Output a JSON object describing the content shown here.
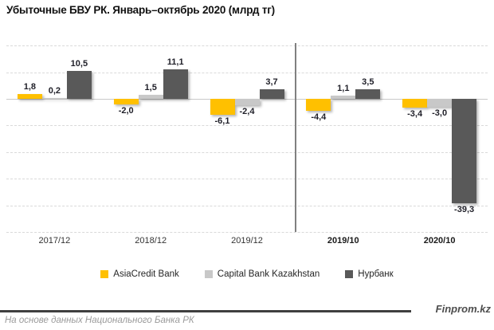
{
  "title": "Убыточные БВУ РК. Январь–октябрь 2020 (млрд тг)",
  "chart_data": {
    "type": "bar",
    "title": "Убыточные БВУ РК. Январь–октябрь 2020 (млрд тг)",
    "unit": "млрд тг",
    "categories": [
      "2017/12",
      "2018/12",
      "2019/12",
      "2019/10",
      "2020/10"
    ],
    "bold_category_from_index": 3,
    "series": [
      {
        "name": "AsiaCredit Bank",
        "color": "#FFC000",
        "values": [
          1.8,
          -2.0,
          -6.1,
          -4.4,
          -3.4
        ]
      },
      {
        "name": "Capital Bank Kazakhstan",
        "color": "#C8C8C8",
        "values": [
          0.2,
          1.5,
          -2.4,
          1.1,
          -3.0
        ]
      },
      {
        "name": "Нурбанк",
        "color": "#595959",
        "values": [
          10.5,
          11.1,
          3.7,
          3.5,
          -39.3
        ]
      }
    ],
    "ylim": [
      -50,
      20
    ],
    "grid_step": 10,
    "grid": "dashed, zero line solid, no y tick labels",
    "legend_position": "bottom-center",
    "divider_between": [
      "2019/12",
      "2019/10"
    ],
    "decimal_separator": ","
  },
  "legend": {
    "items": [
      {
        "label": "AsiaCredit Bank",
        "color": "#FFC000"
      },
      {
        "label": "Capital Bank Kazakhstan",
        "color": "#C8C8C8"
      },
      {
        "label": "Нурбанк",
        "color": "#595959"
      }
    ]
  },
  "footer": {
    "brand": "Finprom.kz",
    "source_note": "На основе данных Национального Банка РК"
  }
}
